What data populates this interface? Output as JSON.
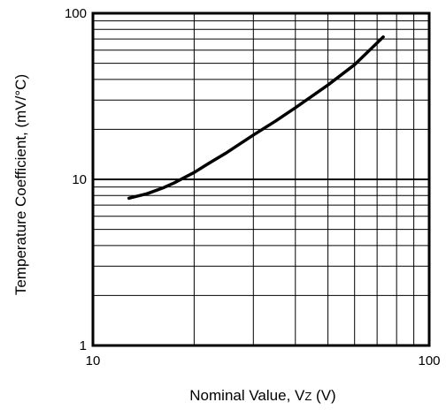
{
  "chart_data": {
    "type": "line",
    "x_scale": "log",
    "y_scale": "log",
    "xlim": [
      10,
      100
    ],
    "ylim": [
      1,
      100
    ],
    "x_ticks": [
      "10",
      "100"
    ],
    "y_ticks": [
      "1",
      "10",
      "100"
    ],
    "xlabel_main": "Nominal Value, V",
    "xlabel_sub": "Z",
    "xlabel_tail": " (V)",
    "ylabel": "Temperature Coefficient, (mV/°C)",
    "grid": true,
    "colors": {
      "line": "#000000",
      "grid": "#000000",
      "frame": "#000000"
    },
    "series": [
      {
        "x": [
          12.8,
          14.5,
          16.2,
          17.4,
          18.6,
          20,
          22,
          25,
          30,
          35,
          40,
          50,
          60,
          73
        ],
        "y": [
          7.7,
          8.2,
          8.9,
          9.5,
          10.2,
          11.0,
          12.4,
          14.5,
          18.5,
          22.5,
          27,
          37,
          49,
          72
        ]
      }
    ]
  }
}
